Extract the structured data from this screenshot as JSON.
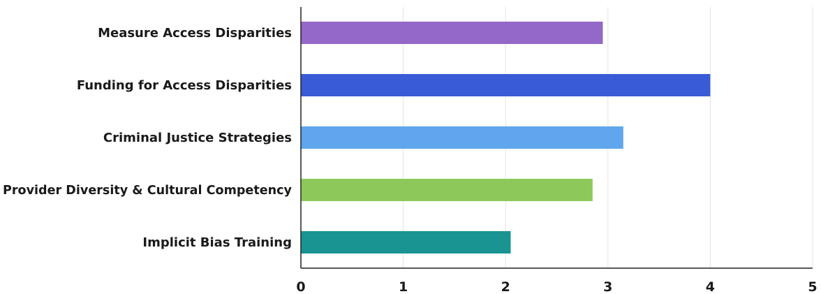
{
  "chart_data": {
    "type": "bar",
    "orientation": "horizontal",
    "categories": [
      "Measure Access Disparities",
      "Funding for Access Disparities",
      "Criminal Justice Strategies",
      "Provider Diversity & Cultural Competency",
      "Implicit Bias Training"
    ],
    "values": [
      2.95,
      4.0,
      3.15,
      2.85,
      2.05
    ],
    "colors": [
      "#9368c6",
      "#3a5bd6",
      "#5fa6ee",
      "#8dc85a",
      "#1a9393"
    ],
    "xlim": [
      0,
      5
    ],
    "xticks": [
      0,
      1,
      2,
      3,
      4,
      5
    ],
    "title": "",
    "xlabel": "",
    "ylabel": "",
    "grid": "vertical",
    "legend": "none"
  }
}
